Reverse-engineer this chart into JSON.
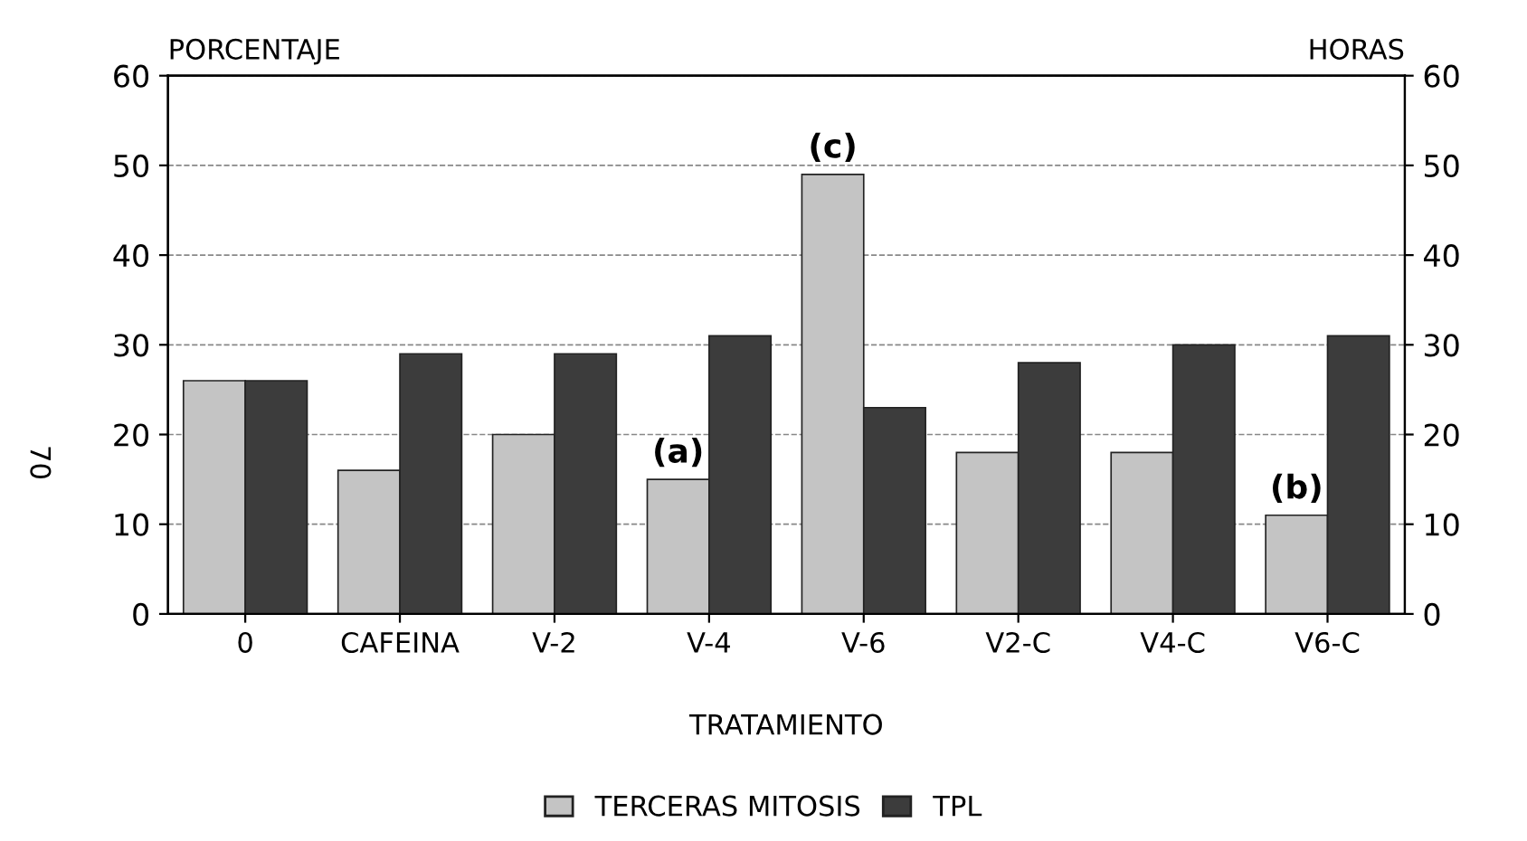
{
  "chart_data": {
    "type": "bar",
    "xlabel": "TRATAMIENTO",
    "ylabel": "PORCENTAJE",
    "y2label": "HORAS",
    "categories": [
      "0",
      "CAFEINA",
      "V-2",
      "V-4",
      "V-6",
      "V2-C",
      "V4-C",
      "V6-C"
    ],
    "series": [
      {
        "name": "TERCERAS MITOSIS",
        "color": "#c4c4c4",
        "values": [
          26,
          16,
          20,
          15,
          49,
          18,
          18,
          11
        ]
      },
      {
        "name": "TPL",
        "color": "#3c3c3c",
        "axis": "y2",
        "values": [
          26,
          29,
          29,
          31,
          23,
          28,
          30,
          31
        ]
      }
    ],
    "ylim": [
      0,
      60
    ],
    "yticks": [
      0,
      10,
      20,
      30,
      40,
      50,
      60
    ],
    "y2lim": [
      0,
      60
    ],
    "y2ticks": [
      0,
      10,
      20,
      30,
      40,
      50,
      60
    ],
    "grid": "y",
    "legend": "bottom",
    "annotations": [
      {
        "text": "(a)",
        "x": "V-4",
        "y": 15
      },
      {
        "text": "(c)",
        "x": "V-6",
        "y": 49
      },
      {
        "text": "(b)",
        "x": "V6-C",
        "y": 11
      },
      "70"
    ]
  }
}
